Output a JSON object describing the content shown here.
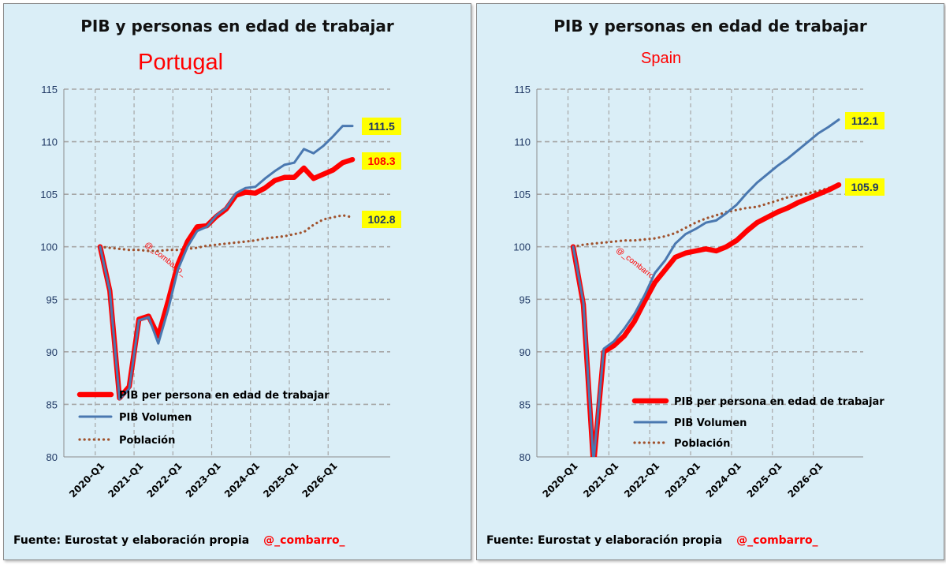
{
  "chart_data": [
    {
      "type": "line",
      "title": "PIB y personas en edad de trabajar",
      "subtitle": "Portugal",
      "ylim": [
        80,
        115
      ],
      "yticks": [
        80,
        85,
        90,
        95,
        100,
        105,
        110,
        115
      ],
      "xtick_labels": [
        "2020-Q1",
        "2021-Q1",
        "2022-Q1",
        "2023-Q1",
        "2024-Q1",
        "2025-Q1",
        "2026-Q1"
      ],
      "grid": true,
      "legend_position": "bottom-left",
      "watermark": "@_combarro_",
      "series": [
        {
          "name": "PIB per persona en edad de trabajar",
          "color": "#ff0000",
          "style": "thick",
          "values": [
            100.0,
            95.8,
            85.6,
            86.7,
            93.1,
            93.4,
            91.5,
            94.8,
            98.3,
            100.5,
            101.9,
            102.0,
            102.9,
            103.6,
            104.9,
            105.2,
            105.1,
            105.6,
            106.3,
            106.6,
            106.6,
            107.5,
            106.5,
            106.9,
            107.3,
            108.0,
            108.3
          ]
        },
        {
          "name": "PIB Volumen",
          "color": "#4a78b0",
          "style": "medium",
          "values": [
            100.0,
            95.8,
            85.5,
            86.5,
            93.0,
            93.3,
            90.8,
            94.0,
            97.8,
            100.0,
            101.5,
            101.9,
            103.0,
            103.7,
            105.1,
            105.6,
            105.7,
            106.5,
            107.2,
            107.8,
            108.0,
            109.3,
            108.9,
            109.6,
            110.5,
            111.5,
            111.5
          ]
        },
        {
          "name": "Población",
          "color": "#a0522d",
          "style": "dotted",
          "values": [
            100.0,
            99.9,
            99.8,
            99.7,
            99.7,
            99.6,
            99.6,
            99.7,
            99.7,
            99.8,
            99.9,
            100.1,
            100.2,
            100.3,
            100.4,
            100.5,
            100.6,
            100.8,
            100.9,
            101.0,
            101.2,
            101.4,
            102.1,
            102.6,
            102.8,
            103.0,
            102.8
          ]
        }
      ],
      "end_labels": [
        {
          "text": "111.5",
          "color": "#1f3864",
          "value": 111.5
        },
        {
          "text": "108.3",
          "color": "#ff0000",
          "value": 108.3
        },
        {
          "text": "102.8",
          "color": "#1f3864",
          "value": 102.8
        }
      ]
    },
    {
      "type": "line",
      "title": "PIB y personas en edad de trabajar",
      "subtitle": "Spain",
      "ylim": [
        80,
        115
      ],
      "yticks": [
        80,
        85,
        90,
        95,
        100,
        105,
        110,
        115
      ],
      "xtick_labels": [
        "2020-Q1",
        "2021-Q1",
        "2022-Q1",
        "2023-Q1",
        "2024-Q1",
        "2025-Q1",
        "2026-Q1"
      ],
      "grid": true,
      "legend_position": "bottom-center",
      "watermark": "@_combarro_",
      "series": [
        {
          "name": "PIB per persona en edad de trabajar",
          "color": "#ff0000",
          "style": "thick",
          "values": [
            100.0,
            94.5,
            79.2,
            90.0,
            90.6,
            91.5,
            92.9,
            94.8,
            96.6,
            97.8,
            99.0,
            99.4,
            99.6,
            99.8,
            99.6,
            100.0,
            100.6,
            101.5,
            102.3,
            102.8,
            103.3,
            103.7,
            104.2,
            104.6,
            105.0,
            105.4,
            105.9
          ]
        },
        {
          "name": "PIB Volumen",
          "color": "#4a78b0",
          "style": "medium",
          "values": [
            100.0,
            94.7,
            79.5,
            90.3,
            91.0,
            92.2,
            93.6,
            95.4,
            97.5,
            98.7,
            100.3,
            101.2,
            101.7,
            102.3,
            102.5,
            103.2,
            104.0,
            105.1,
            106.1,
            106.9,
            107.7,
            108.4,
            109.2,
            110.0,
            110.8,
            111.4,
            112.1
          ]
        },
        {
          "name": "Población",
          "color": "#a0522d",
          "style": "dotted",
          "values": [
            100.0,
            100.2,
            100.3,
            100.4,
            100.5,
            100.6,
            100.6,
            100.7,
            100.8,
            101.0,
            101.3,
            101.8,
            102.3,
            102.7,
            103.0,
            103.3,
            103.5,
            103.7,
            103.8,
            104.1,
            104.4,
            104.7,
            104.9,
            105.1,
            105.3,
            105.6,
            105.9
          ]
        }
      ],
      "end_labels": [
        {
          "text": "112.1",
          "color": "#1f3864",
          "value": 112.1
        },
        {
          "text": "105.9",
          "color": "#1f3864",
          "value": 105.9
        }
      ]
    }
  ],
  "footer": {
    "source": "Fuente: Eurostat y elaboración propia",
    "handle": "@_combarro_"
  },
  "colors": {
    "panel_bg": "#daeef7",
    "grid": "#a6a6a6",
    "label_bg": "#ffff00"
  }
}
